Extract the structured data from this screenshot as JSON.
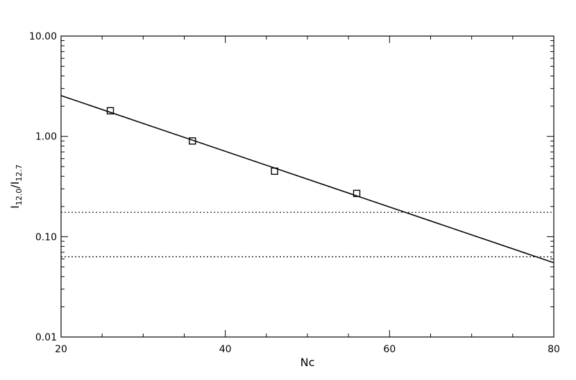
{
  "chart_data": {
    "type": "scatter",
    "xlabel": "Nc",
    "ylabel_main": "I",
    "ylabel_sub1": "12.0",
    "ylabel_sep": "/I",
    "ylabel_sub2": "12.7",
    "xlim": [
      20,
      80
    ],
    "ylim": [
      0.01,
      10
    ],
    "yscale": "log",
    "x_ticks": [
      20,
      40,
      60,
      80
    ],
    "x_tick_labels": [
      "20",
      "40",
      "60",
      "80"
    ],
    "y_ticks": [
      10,
      1,
      0.1,
      0.01
    ],
    "y_tick_labels": [
      "10.00",
      "1.00",
      "0.10",
      "0.01"
    ],
    "grid": false,
    "points": [
      {
        "x": 26,
        "y": 1.8
      },
      {
        "x": 36,
        "y": 0.9
      },
      {
        "x": 46,
        "y": 0.45
      },
      {
        "x": 56,
        "y": 0.27
      }
    ],
    "fit_line": [
      {
        "x": 20,
        "y": 2.55
      },
      {
        "x": 80,
        "y": 0.055
      }
    ],
    "hlines": [
      0.175,
      0.063
    ],
    "colors": {
      "ink": "#000000",
      "background": "#ffffff"
    }
  }
}
